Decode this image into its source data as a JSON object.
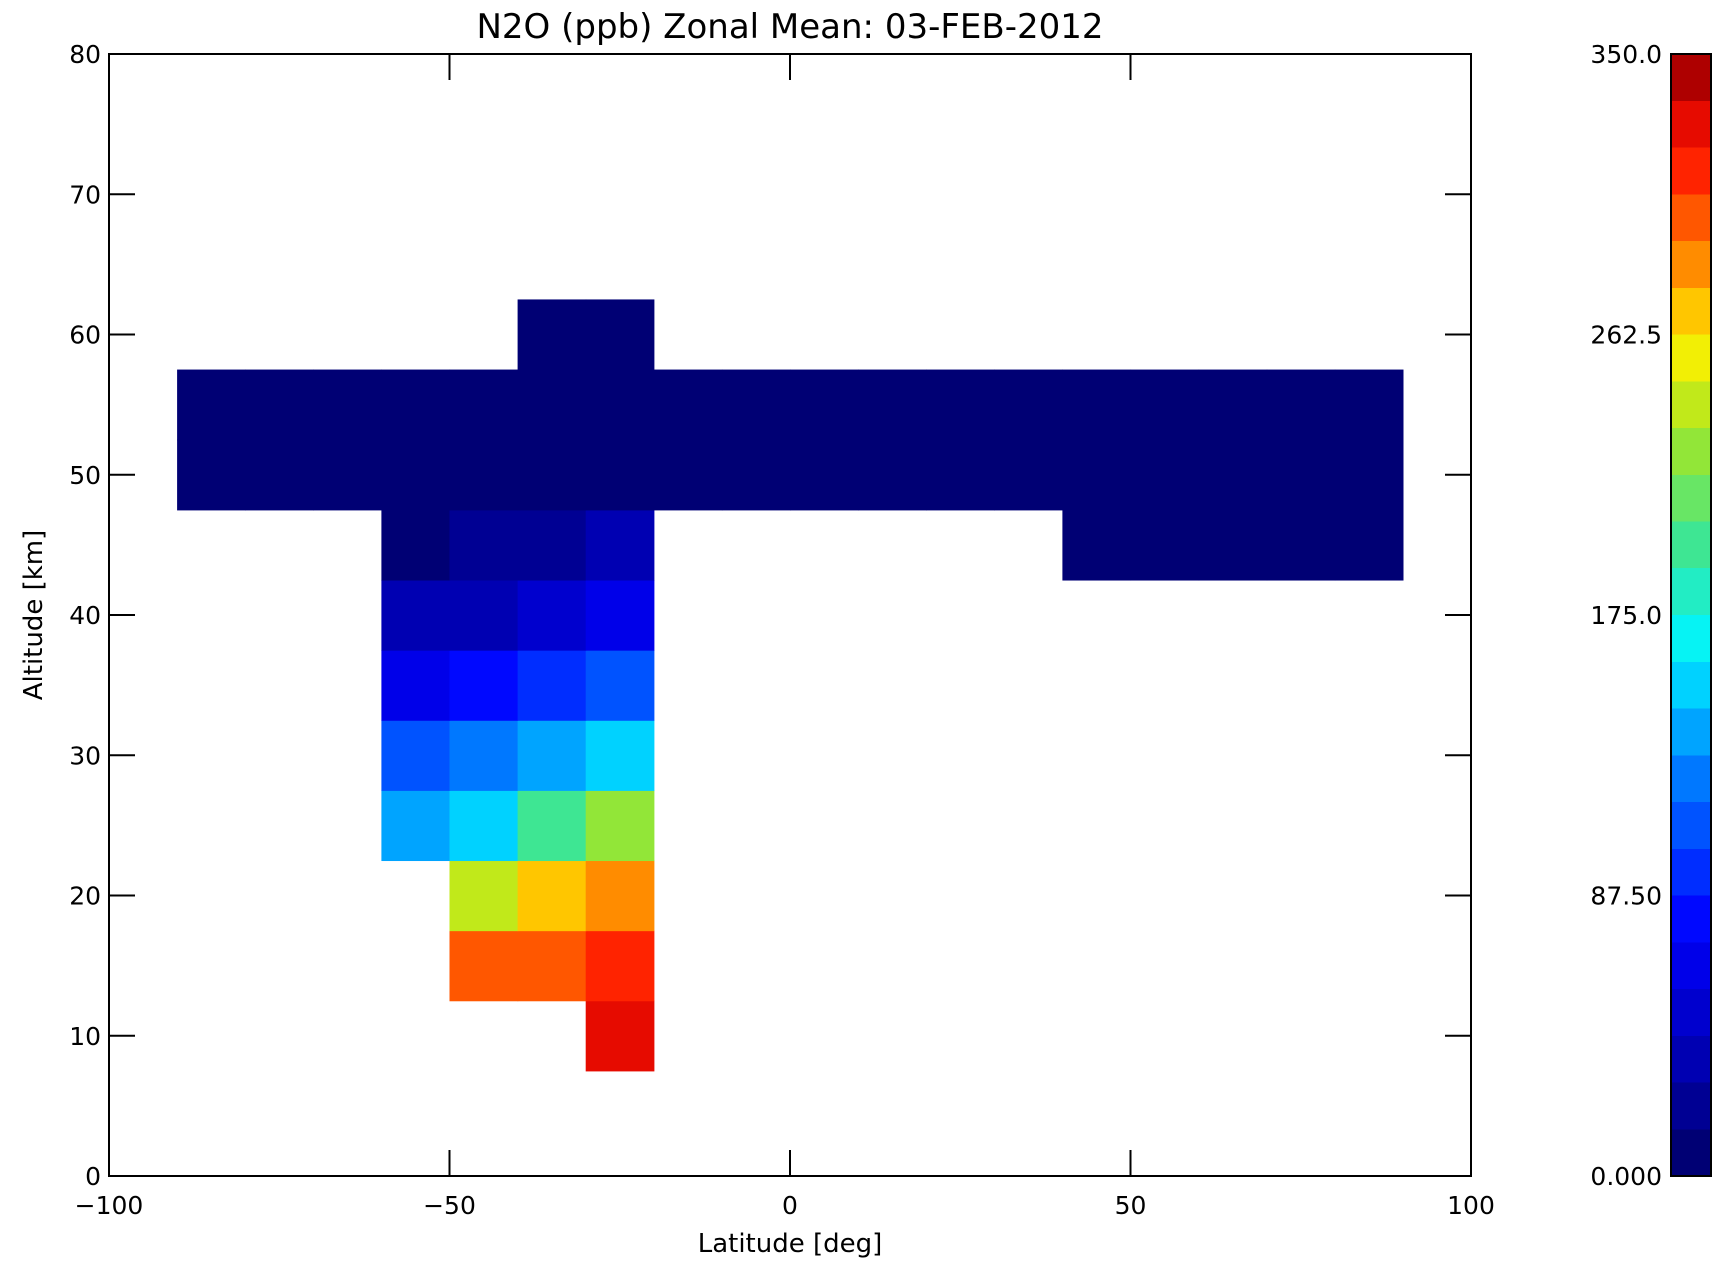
{
  "chart_data": {
    "type": "heatmap",
    "title": "N2O (ppb) Zonal Mean: 03-FEB-2012",
    "xlabel": "Latitude [deg]",
    "ylabel": "Altitude [km]",
    "xlim": [
      -100,
      100
    ],
    "ylim": [
      0,
      80
    ],
    "x_ticks": [
      "-100",
      "-50",
      "0",
      "50",
      "100"
    ],
    "y_ticks": [
      "0",
      "10",
      "20",
      "30",
      "40",
      "50",
      "60",
      "70",
      "80"
    ],
    "colorbar": {
      "range": [
        0,
        350
      ],
      "tick_labels": [
        "0.000",
        "87.50",
        "175.0",
        "262.5",
        "350.0"
      ],
      "colormap": "rainbow (dark blue to dark red)"
    },
    "value_units": "ppb",
    "x": [
      -85,
      -75,
      -65,
      -55,
      -45,
      -35,
      -25,
      -15,
      -5,
      5,
      15,
      25,
      35,
      45,
      55,
      65,
      75,
      85
    ],
    "y": [
      10,
      15,
      20,
      25,
      30,
      35,
      40,
      45,
      50,
      55,
      60
    ],
    "z": [
      [
        null,
        null,
        null,
        null,
        null,
        null,
        330,
        null,
        null,
        null,
        null,
        null,
        null,
        null,
        null,
        null,
        null,
        null
      ],
      [
        null,
        null,
        null,
        null,
        300,
        305,
        315,
        null,
        null,
        null,
        null,
        null,
        null,
        null,
        null,
        null,
        null,
        null
      ],
      [
        null,
        null,
        null,
        null,
        245,
        270,
        290,
        null,
        null,
        null,
        null,
        null,
        null,
        null,
        null,
        null,
        null,
        null
      ],
      [
        null,
        null,
        null,
        145,
        160,
        195,
        230,
        null,
        null,
        null,
        null,
        null,
        null,
        null,
        null,
        null,
        null,
        null
      ],
      [
        null,
        null,
        null,
        110,
        120,
        135,
        150,
        null,
        null,
        null,
        null,
        null,
        null,
        null,
        null,
        null,
        null,
        null
      ],
      [
        null,
        null,
        null,
        65,
        78,
        95,
        110,
        null,
        null,
        null,
        null,
        null,
        null,
        null,
        null,
        null,
        null,
        null
      ],
      [
        null,
        null,
        null,
        30,
        40,
        55,
        60,
        null,
        null,
        null,
        null,
        null,
        null,
        null,
        null,
        null,
        null,
        null
      ],
      [
        null,
        null,
        null,
        12,
        16,
        24,
        30,
        null,
        null,
        null,
        null,
        null,
        null,
        7,
        5,
        5,
        5,
        5
      ],
      [
        5,
        5,
        5,
        6,
        8,
        12,
        14,
        11,
        9,
        8,
        7,
        9,
        6,
        5,
        5,
        5,
        5,
        5
      ],
      [
        3,
        3,
        3,
        4,
        4,
        5,
        6,
        5,
        5,
        5,
        4,
        4,
        4,
        4,
        4,
        4,
        4,
        4
      ],
      [
        null,
        null,
        null,
        null,
        null,
        3,
        3,
        null,
        null,
        null,
        null,
        null,
        null,
        null,
        null,
        null,
        null,
        null
      ]
    ]
  }
}
